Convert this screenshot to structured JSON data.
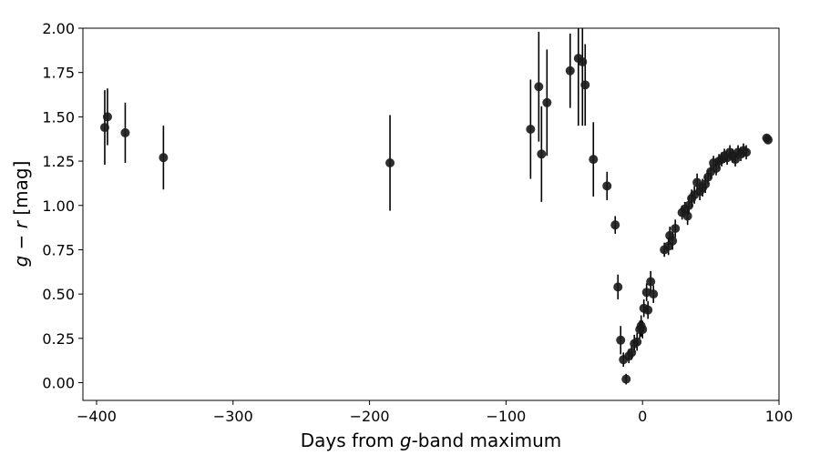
{
  "chart_data": {
    "type": "scatter",
    "xlabel": {
      "prefix": "Days from ",
      "italic": "g",
      "suffix": "-band maximum"
    },
    "ylabel": {
      "italic_a": "g",
      "mid": " − ",
      "italic_b": "r",
      "suffix": " [mag]"
    },
    "xlim": [
      -410,
      100
    ],
    "ylim": [
      -0.1,
      2.0
    ],
    "xticks": [
      -400,
      -300,
      -200,
      -100,
      0,
      100
    ],
    "xtick_labels": [
      "−400",
      "−300",
      "−200",
      "−100",
      "0",
      "100"
    ],
    "yticks": [
      0.0,
      0.25,
      0.5,
      0.75,
      1.0,
      1.25,
      1.5,
      1.75,
      2.0
    ],
    "ytick_labels": [
      "0.00",
      "0.25",
      "0.50",
      "0.75",
      "1.00",
      "1.25",
      "1.50",
      "1.75",
      "2.00"
    ],
    "grid": false,
    "marker_color": "#1a1a1a",
    "errorbar_color": "#000000",
    "points": [
      {
        "x": -394,
        "y": 1.44,
        "err": 0.21
      },
      {
        "x": -392,
        "y": 1.5,
        "err": 0.16
      },
      {
        "x": -379,
        "y": 1.41,
        "err": 0.17
      },
      {
        "x": -351,
        "y": 1.27,
        "err": 0.18
      },
      {
        "x": -185,
        "y": 1.24,
        "err": 0.27
      },
      {
        "x": -82,
        "y": 1.43,
        "err": 0.28
      },
      {
        "x": -76,
        "y": 1.67,
        "err": 0.31
      },
      {
        "x": -74,
        "y": 1.29,
        "err": 0.27
      },
      {
        "x": -70,
        "y": 1.58,
        "err": 0.3
      },
      {
        "x": -53,
        "y": 1.76,
        "err": 0.21
      },
      {
        "x": -47,
        "y": 1.83,
        "err": 0.38
      },
      {
        "x": -44,
        "y": 1.81,
        "err": 0.36
      },
      {
        "x": -42,
        "y": 1.68,
        "err": 0.23
      },
      {
        "x": -36,
        "y": 1.26,
        "err": 0.21
      },
      {
        "x": -26,
        "y": 1.11,
        "err": 0.08
      },
      {
        "x": -20,
        "y": 0.89,
        "err": 0.05
      },
      {
        "x": -18,
        "y": 0.54,
        "err": 0.07
      },
      {
        "x": -16,
        "y": 0.24,
        "err": 0.08
      },
      {
        "x": -14,
        "y": 0.13,
        "err": 0.04
      },
      {
        "x": -12,
        "y": 0.02,
        "err": 0.03
      },
      {
        "x": -10,
        "y": 0.15,
        "err": 0.04
      },
      {
        "x": -8,
        "y": 0.17,
        "err": 0.04
      },
      {
        "x": -6,
        "y": 0.22,
        "err": 0.05
      },
      {
        "x": -4,
        "y": 0.23,
        "err": 0.05
      },
      {
        "x": -2,
        "y": 0.3,
        "err": 0.05
      },
      {
        "x": -1,
        "y": 0.32,
        "err": 0.06
      },
      {
        "x": 0,
        "y": 0.3,
        "err": 0.05
      },
      {
        "x": 1,
        "y": 0.42,
        "err": 0.05
      },
      {
        "x": 3,
        "y": 0.51,
        "err": 0.05
      },
      {
        "x": 4,
        "y": 0.41,
        "err": 0.05
      },
      {
        "x": 6,
        "y": 0.57,
        "err": 0.06
      },
      {
        "x": 8,
        "y": 0.5,
        "err": 0.05
      },
      {
        "x": 16,
        "y": 0.75,
        "err": 0.04
      },
      {
        "x": 19,
        "y": 0.77,
        "err": 0.05
      },
      {
        "x": 20,
        "y": 0.83,
        "err": 0.05
      },
      {
        "x": 22,
        "y": 0.8,
        "err": 0.05
      },
      {
        "x": 24,
        "y": 0.87,
        "err": 0.05
      },
      {
        "x": 29,
        "y": 0.96,
        "err": 0.04
      },
      {
        "x": 31,
        "y": 0.98,
        "err": 0.04
      },
      {
        "x": 33,
        "y": 0.94,
        "err": 0.05
      },
      {
        "x": 34,
        "y": 1.0,
        "err": 0.05
      },
      {
        "x": 36,
        "y": 1.04,
        "err": 0.05
      },
      {
        "x": 38,
        "y": 1.06,
        "err": 0.05
      },
      {
        "x": 40,
        "y": 1.13,
        "err": 0.05
      },
      {
        "x": 42,
        "y": 1.08,
        "err": 0.05
      },
      {
        "x": 44,
        "y": 1.1,
        "err": 0.05
      },
      {
        "x": 46,
        "y": 1.12,
        "err": 0.05
      },
      {
        "x": 48,
        "y": 1.16,
        "err": 0.04
      },
      {
        "x": 50,
        "y": 1.19,
        "err": 0.04
      },
      {
        "x": 52,
        "y": 1.24,
        "err": 0.04
      },
      {
        "x": 54,
        "y": 1.21,
        "err": 0.04
      },
      {
        "x": 56,
        "y": 1.25,
        "err": 0.04
      },
      {
        "x": 58,
        "y": 1.26,
        "err": 0.04
      },
      {
        "x": 60,
        "y": 1.28,
        "err": 0.04
      },
      {
        "x": 62,
        "y": 1.27,
        "err": 0.04
      },
      {
        "x": 64,
        "y": 1.3,
        "err": 0.04
      },
      {
        "x": 66,
        "y": 1.28,
        "err": 0.04
      },
      {
        "x": 68,
        "y": 1.26,
        "err": 0.04
      },
      {
        "x": 70,
        "y": 1.3,
        "err": 0.04
      },
      {
        "x": 72,
        "y": 1.29,
        "err": 0.04
      },
      {
        "x": 74,
        "y": 1.31,
        "err": 0.04
      },
      {
        "x": 76,
        "y": 1.3,
        "err": 0.04
      },
      {
        "x": 91,
        "y": 1.38,
        "err": 0.02
      },
      {
        "x": 92,
        "y": 1.37,
        "err": 0.02
      }
    ]
  }
}
